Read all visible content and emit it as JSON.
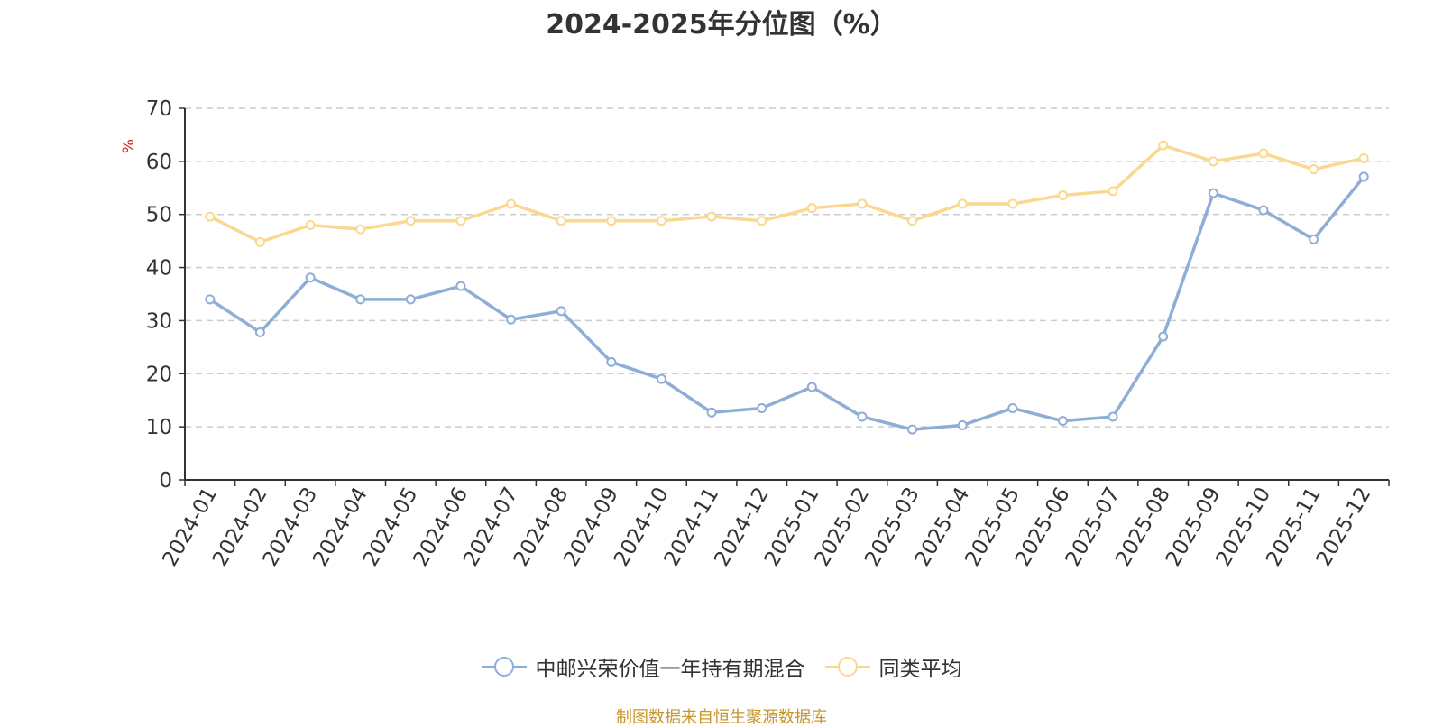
{
  "chart_data": {
    "type": "line",
    "title": "2024-2025年分位图（%）",
    "ylabel": "%",
    "xlabel": "",
    "ylim": [
      0,
      70
    ],
    "yticks": [
      0,
      10,
      20,
      30,
      40,
      50,
      60,
      70
    ],
    "grid": "horizontal-dashed",
    "legend_position": "bottom",
    "categories": [
      "2024-01",
      "2024-02",
      "2024-03",
      "2024-04",
      "2024-05",
      "2024-06",
      "2024-07",
      "2024-08",
      "2024-09",
      "2024-10",
      "2024-11",
      "2024-12",
      "2025-01",
      "2025-02",
      "2025-03",
      "2025-04",
      "2025-05",
      "2025-06",
      "2025-07",
      "2025-08",
      "2025-09",
      "2025-10",
      "2025-11",
      "2025-12"
    ],
    "series": [
      {
        "name": "中邮兴荣价值一年持有期混合",
        "color": "#8eaed8",
        "values": [
          34.0,
          27.8,
          38.1,
          34.0,
          34.0,
          36.5,
          30.2,
          31.8,
          22.2,
          19.0,
          12.7,
          13.5,
          17.5,
          11.9,
          9.5,
          10.3,
          13.5,
          11.1,
          11.9,
          27.0,
          54.0,
          50.8,
          45.3,
          57.1
        ]
      },
      {
        "name": "同类平均",
        "color": "#fbd88f",
        "values": [
          49.6,
          44.8,
          48.0,
          47.2,
          48.8,
          48.8,
          52.0,
          48.8,
          48.8,
          48.8,
          49.6,
          48.8,
          51.2,
          52.0,
          48.8,
          52.0,
          52.0,
          53.6,
          54.4,
          63.0,
          60.0,
          61.5,
          58.5,
          60.6
        ]
      }
    ],
    "source_note": "制图数据来自恒生聚源数据库",
    "source_color": "#c8962a"
  }
}
